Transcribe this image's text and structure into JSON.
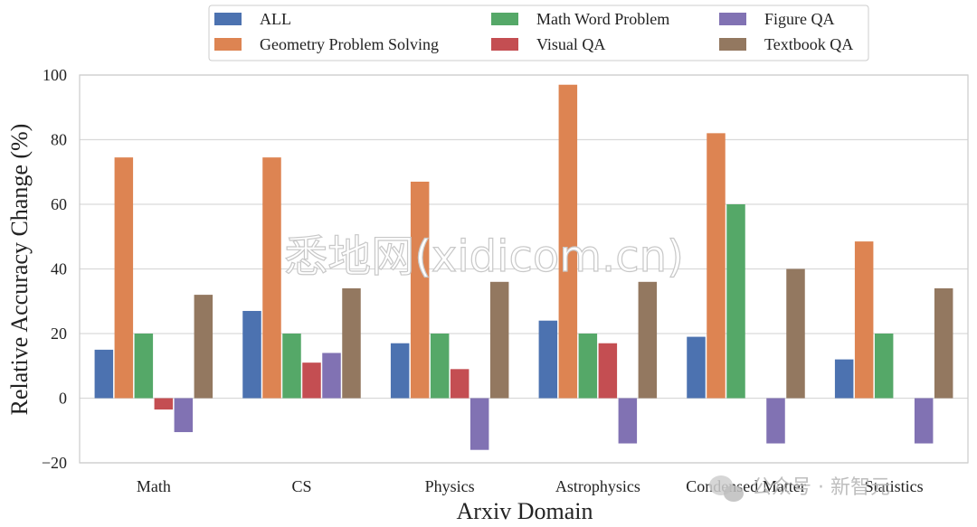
{
  "chart_data": {
    "type": "bar",
    "categories": [
      "Math",
      "CS",
      "Physics",
      "Astrophysics",
      "Condensed Matter",
      "Statistics"
    ],
    "series": [
      {
        "name": "ALL",
        "color": "#4c72b0",
        "values": [
          15,
          27,
          17,
          24,
          19,
          12
        ]
      },
      {
        "name": "Geometry Problem Solving",
        "color": "#dd8452",
        "values": [
          74.5,
          74.5,
          67,
          97,
          82,
          48.5
        ]
      },
      {
        "name": "Math Word Problem",
        "color": "#55a868",
        "values": [
          20,
          20,
          20,
          20,
          60,
          20
        ]
      },
      {
        "name": "Visual QA",
        "color": "#c44e52",
        "values": [
          -3.5,
          11,
          9,
          17,
          null,
          null
        ]
      },
      {
        "name": "Figure QA",
        "color": "#8172b3",
        "values": [
          -10.5,
          14,
          -16,
          -14,
          -14,
          -14
        ]
      },
      {
        "name": "Textbook QA",
        "color": "#937860",
        "values": [
          32,
          34,
          36,
          36,
          40,
          34
        ]
      }
    ],
    "xlabel": "Arxiv Domain",
    "ylabel": "Relative Accuracy Change (%)",
    "ylim": [
      -20,
      100
    ],
    "yticks": [
      -20,
      0,
      20,
      40,
      60,
      80,
      100
    ],
    "grid": "horizontal",
    "legend_position": "top"
  },
  "watermarks": {
    "center": "悉地网(xidicom.cn)",
    "corner": "公众号 · 新智元"
  },
  "colors": {
    "grid": "#d9d9d9",
    "axes_frame": "#cccccc"
  }
}
